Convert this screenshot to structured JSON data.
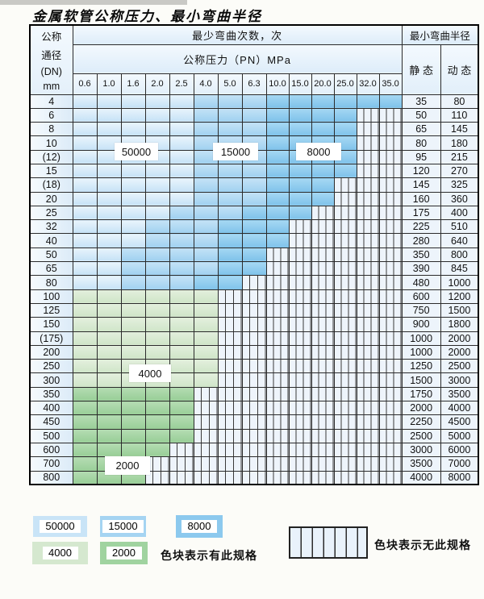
{
  "page": {
    "title": "金属软管公称压力、最小弯曲半径"
  },
  "table": {
    "corner_lines": [
      "公称",
      "通径",
      "(DN)",
      "mm"
    ],
    "bend_header": "最少弯曲次数，次",
    "pressure_header": "公称压力（PN）MPa",
    "radius_header": "最小弯曲半径",
    "static_label": "静 态",
    "dynamic_label": "动 态",
    "pressures": [
      "0.6",
      "1.0",
      "1.6",
      "2.0",
      "2.5",
      "4.0",
      "5.0",
      "6.3",
      "10.0",
      "15.0",
      "20.0",
      "25.0",
      "32.0",
      "35.0"
    ],
    "rows": [
      {
        "dn": "4",
        "static": "35",
        "dynamic": "80",
        "bands": [
          [
            "b1",
            5
          ],
          [
            "b2",
            3
          ],
          [
            "b3",
            6
          ]
        ]
      },
      {
        "dn": "6",
        "static": "50",
        "dynamic": "110",
        "bands": [
          [
            "b1",
            5
          ],
          [
            "b2",
            3
          ],
          [
            "b3",
            4
          ]
        ]
      },
      {
        "dn": "8",
        "static": "65",
        "dynamic": "145",
        "bands": [
          [
            "b1",
            5
          ],
          [
            "b2",
            3
          ],
          [
            "b3",
            4
          ]
        ]
      },
      {
        "dn": "10",
        "static": "80",
        "dynamic": "180",
        "bands": [
          [
            "b1",
            5
          ],
          [
            "b2",
            3
          ],
          [
            "b3",
            4
          ]
        ]
      },
      {
        "dn": "(12)",
        "static": "95",
        "dynamic": "215",
        "bands": [
          [
            "b1",
            5
          ],
          [
            "b2",
            3
          ],
          [
            "b3",
            4
          ]
        ]
      },
      {
        "dn": "15",
        "static": "120",
        "dynamic": "270",
        "bands": [
          [
            "b1",
            5
          ],
          [
            "b2",
            3
          ],
          [
            "b3",
            4
          ]
        ]
      },
      {
        "dn": "(18)",
        "static": "145",
        "dynamic": "325",
        "bands": [
          [
            "b1",
            5
          ],
          [
            "b2",
            3
          ],
          [
            "b3",
            3
          ]
        ]
      },
      {
        "dn": "20",
        "static": "160",
        "dynamic": "360",
        "bands": [
          [
            "b1",
            5
          ],
          [
            "b2",
            3
          ],
          [
            "b3",
            3
          ]
        ]
      },
      {
        "dn": "25",
        "static": "175",
        "dynamic": "400",
        "bands": [
          [
            "b1",
            4
          ],
          [
            "b2",
            3
          ],
          [
            "b3",
            3
          ]
        ]
      },
      {
        "dn": "32",
        "static": "225",
        "dynamic": "510",
        "bands": [
          [
            "b1",
            3
          ],
          [
            "b2",
            3
          ],
          [
            "b3",
            3
          ]
        ]
      },
      {
        "dn": "40",
        "static": "280",
        "dynamic": "640",
        "bands": [
          [
            "b1",
            3
          ],
          [
            "b2",
            3
          ],
          [
            "b3",
            3
          ]
        ]
      },
      {
        "dn": "50",
        "static": "350",
        "dynamic": "800",
        "bands": [
          [
            "b1",
            2
          ],
          [
            "b2",
            4
          ],
          [
            "b3",
            2
          ]
        ]
      },
      {
        "dn": "65",
        "static": "390",
        "dynamic": "845",
        "bands": [
          [
            "b1",
            2
          ],
          [
            "b2",
            4
          ],
          [
            "b3",
            2
          ]
        ]
      },
      {
        "dn": "80",
        "static": "480",
        "dynamic": "1000",
        "bands": [
          [
            "b1",
            2
          ],
          [
            "b2",
            3
          ],
          [
            "b3",
            2
          ]
        ]
      },
      {
        "dn": "100",
        "static": "600",
        "dynamic": "1200",
        "bands": [
          [
            "g1",
            6
          ]
        ]
      },
      {
        "dn": "125",
        "static": "750",
        "dynamic": "1500",
        "bands": [
          [
            "g1",
            6
          ]
        ]
      },
      {
        "dn": "150",
        "static": "900",
        "dynamic": "1800",
        "bands": [
          [
            "g1",
            6
          ]
        ]
      },
      {
        "dn": "(175)",
        "static": "1000",
        "dynamic": "2000",
        "bands": [
          [
            "g1",
            6
          ]
        ]
      },
      {
        "dn": "200",
        "static": "1000",
        "dynamic": "2000",
        "bands": [
          [
            "g1",
            6
          ]
        ]
      },
      {
        "dn": "250",
        "static": "1250",
        "dynamic": "2500",
        "bands": [
          [
            "g1",
            6
          ]
        ]
      },
      {
        "dn": "300",
        "static": "1500",
        "dynamic": "3000",
        "bands": [
          [
            "g1",
            6
          ]
        ]
      },
      {
        "dn": "350",
        "static": "1750",
        "dynamic": "3500",
        "bands": [
          [
            "g2",
            5
          ]
        ]
      },
      {
        "dn": "400",
        "static": "2000",
        "dynamic": "4000",
        "bands": [
          [
            "g2",
            5
          ]
        ]
      },
      {
        "dn": "450",
        "static": "2250",
        "dynamic": "4500",
        "bands": [
          [
            "g2",
            5
          ]
        ]
      },
      {
        "dn": "500",
        "static": "2500",
        "dynamic": "5000",
        "bands": [
          [
            "g2",
            5
          ]
        ]
      },
      {
        "dn": "600",
        "static": "3000",
        "dynamic": "6000",
        "bands": [
          [
            "g2",
            4
          ]
        ]
      },
      {
        "dn": "700",
        "static": "3500",
        "dynamic": "7000",
        "bands": [
          [
            "g2",
            3
          ]
        ]
      },
      {
        "dn": "800",
        "static": "4000",
        "dynamic": "8000",
        "bands": [
          [
            "g2",
            3
          ]
        ]
      }
    ]
  },
  "band_values": {
    "b1": "50000",
    "b2": "15000",
    "b3": "8000",
    "g1": "4000",
    "g2": "2000"
  },
  "legend": {
    "swatches": [
      {
        "band": "b1",
        "label": "50000"
      },
      {
        "band": "b2",
        "label": "15000"
      },
      {
        "band": "b3",
        "label": "8000"
      },
      {
        "band": "g1",
        "label": "4000"
      },
      {
        "band": "g2",
        "label": "2000"
      }
    ],
    "has_spec_text": "色块表示有此规格",
    "no_spec_text": "色块表示无此规格"
  },
  "colors": {
    "b1": "#c9e4f7",
    "b2": "#a5d4f2",
    "b3": "#8cc9ee",
    "g1": "#d5e8cf",
    "g2": "#a0d3a0",
    "no_spec_bg": "#eef4fb",
    "grid_line": "#2b2b2b"
  }
}
